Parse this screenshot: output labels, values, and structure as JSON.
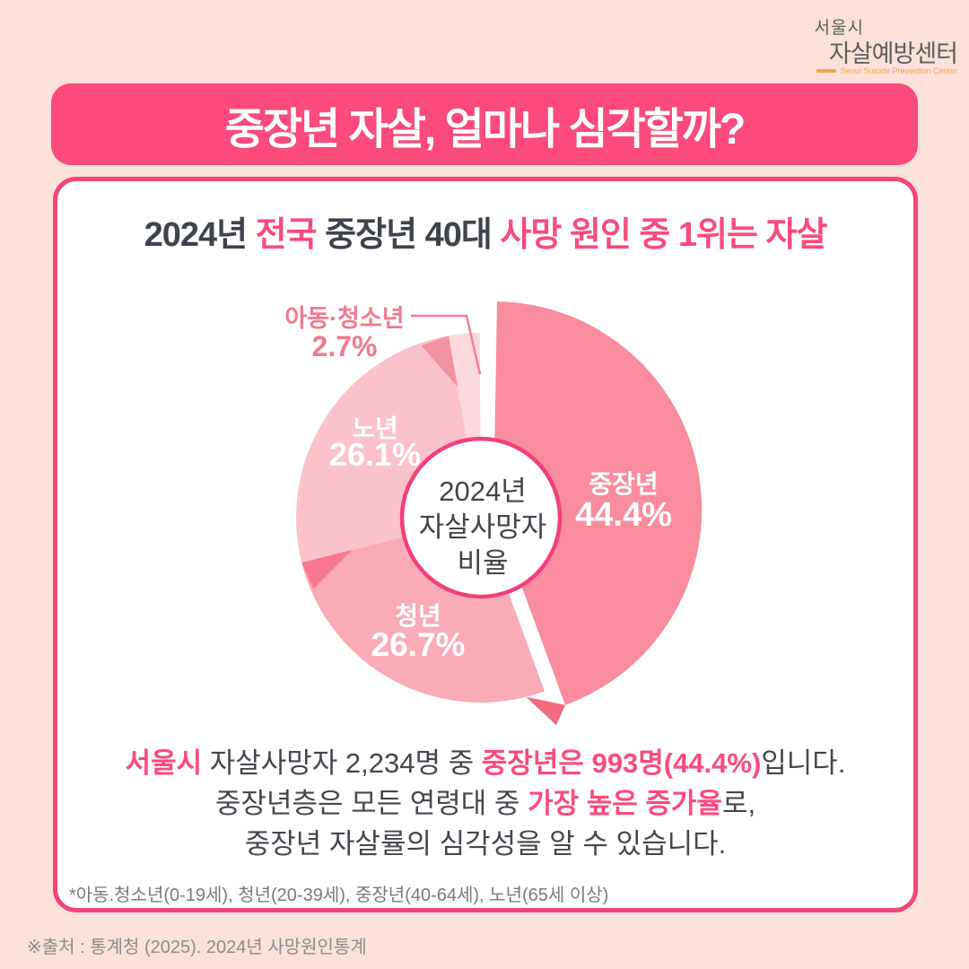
{
  "colors": {
    "background": "#FCE1D8",
    "accent_pink": "#FA4B7C",
    "card_border": "#F4437B",
    "highlight_yellow": "#FBEEA3",
    "text_dark": "#3F434C",
    "text_body": "#45464D",
    "text_footnote": "#7A7A7A",
    "text_source": "#8C8C8C",
    "logo_orange": "#F2A64A",
    "logo_gray": "#5E5E5E"
  },
  "logo": {
    "city": "서울시",
    "name": "자살예방센터",
    "subtitle": "Seoul Suicide Prevention Center"
  },
  "header": {
    "title": "중장년 자살, 얼마나 심각할까?"
  },
  "subtitle": {
    "parts": [
      {
        "t": "2024년 ",
        "s": "d"
      },
      {
        "t": "전국",
        "s": "p"
      },
      {
        "t": " 중장년 40대 ",
        "s": "d"
      },
      {
        "t": "사망 원인 중 1위는 자살",
        "s": "p"
      }
    ]
  },
  "chart_data": {
    "type": "pie",
    "title": "2024년 자살사망자 비율",
    "center_label_lines": [
      "2024년",
      "자살사망자",
      "비율"
    ],
    "unit": "%",
    "start_angle": "top",
    "direction": "clockwise",
    "segments": [
      {
        "label": "중장년",
        "value": 44.4,
        "color": "#F98D9D",
        "label_color": "#FFFFFF",
        "exploded": true
      },
      {
        "label": "청년",
        "value": 26.7,
        "color": "#FAABB8",
        "label_color": "#FFFFFF",
        "exploded": false
      },
      {
        "label": "노년",
        "value": 26.1,
        "color": "#FBC2CC",
        "label_color": "#FFFFFF",
        "exploded": false
      },
      {
        "label": "아동·청소년",
        "value": 2.7,
        "color": "#FCD9DF",
        "label_color": "#F2798F",
        "exploded": false
      }
    ],
    "center_stroke": "#F23F7B",
    "center_text_color": "#43444B",
    "leader_color": "#F27E93",
    "fold_colors": [
      "#F8798D",
      "#F2929F",
      "#F26C80"
    ]
  },
  "body": {
    "lines": [
      [
        {
          "t": "서울시",
          "s": "p"
        },
        {
          "t": " 자살사망자 2,234명 중 ",
          "s": "d"
        },
        {
          "t": "중장년은 993명(44.4%)",
          "s": "p"
        },
        {
          "t": "입니다.",
          "s": "d"
        }
      ],
      [
        {
          "t": "중장년층은 모든 연령대 중 ",
          "s": "d"
        },
        {
          "t": "가장 높은 증가율",
          "s": "p"
        },
        {
          "t": "로,",
          "s": "d"
        }
      ],
      [
        {
          "t": "중장년 자살률의 심각성을 알 수 있습니다.",
          "s": "d"
        }
      ]
    ]
  },
  "footnote": "*아동.청소년(0-19세), 청년(20-39세), 중장년(40-64세), 노년(65세 이상)",
  "source": "※출처 : 통계청 (2025). 2024년 사망원인통계"
}
